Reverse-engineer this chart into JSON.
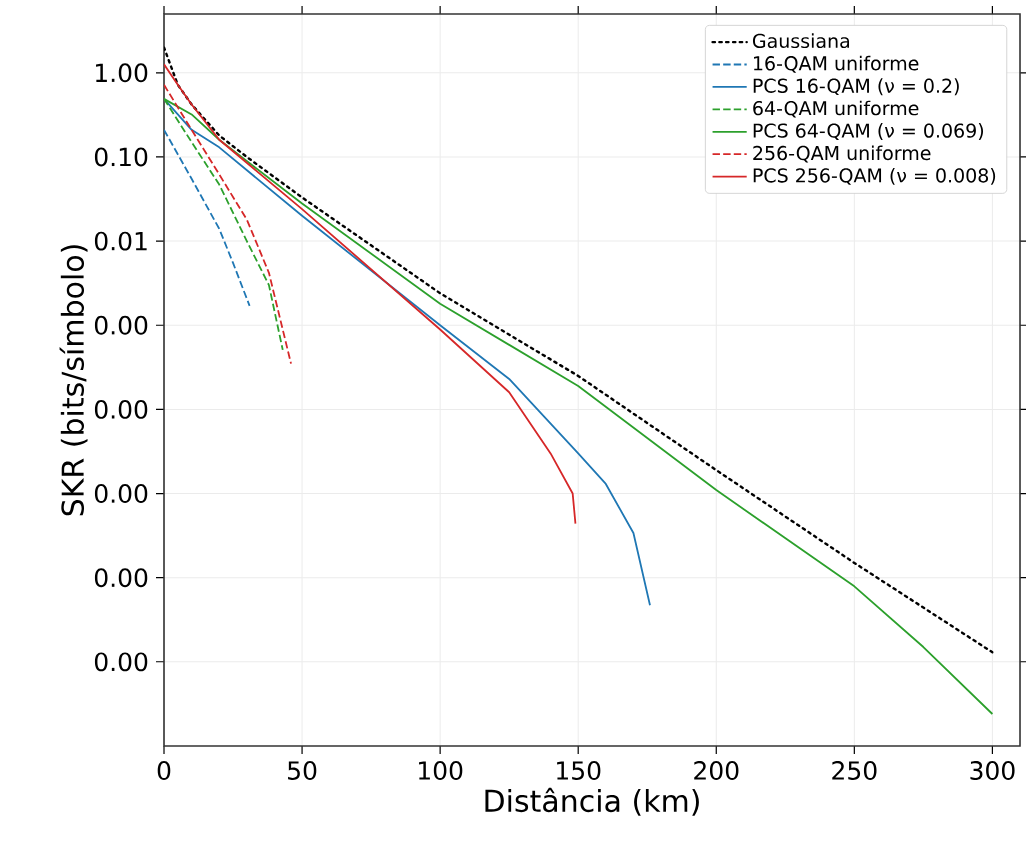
{
  "chart_data": {
    "type": "line",
    "xlabel": "Distância (km)",
    "ylabel": "SKR (bits/símbolo)",
    "log": "y",
    "grid": true,
    "legend": "top right",
    "xlim": [
      0,
      310
    ],
    "ylim": [
      1e-08,
      5
    ],
    "xticks": [
      0,
      50,
      100,
      150,
      200,
      250,
      300
    ],
    "yticks": [
      {
        "value": 1,
        "label": "1.00"
      },
      {
        "value": 0.1,
        "label": "0.10"
      },
      {
        "value": 0.01,
        "label": "0.01"
      },
      {
        "value": 0.001,
        "label": "0.00"
      },
      {
        "value": 0.0001,
        "label": "0.00"
      },
      {
        "value": 1e-05,
        "label": "0.00"
      },
      {
        "value": 1e-06,
        "label": "0.00"
      },
      {
        "value": 1e-07,
        "label": "0.00"
      }
    ],
    "series": [
      {
        "name": "Gaussiana",
        "color": "#000000",
        "line_style": "dotted",
        "x": [
          0,
          5,
          10,
          20,
          30,
          50,
          100,
          150,
          200,
          250,
          300
        ],
        "values": [
          2.0,
          0.72,
          0.42,
          0.18,
          0.1,
          0.033,
          0.0024,
          0.00025,
          1.9e-05,
          1.5e-06,
          1.3e-07
        ]
      },
      {
        "name": "16-QAM uniforme",
        "color": "#1f77b4",
        "line_style": "dashed",
        "x": [
          0,
          10,
          20,
          25,
          31
        ],
        "values": [
          0.21,
          0.055,
          0.014,
          0.0055,
          0.0017
        ]
      },
      {
        "name": "PCS 16-QAM (ν = 0.2)",
        "color": "#1f77b4",
        "line_style": "solid",
        "x": [
          0,
          5,
          10,
          20,
          50,
          100,
          125,
          150,
          160,
          170,
          176
        ],
        "values": [
          0.49,
          0.32,
          0.21,
          0.13,
          0.02,
          0.001,
          0.00023,
          3e-05,
          1.3e-05,
          3.4e-06,
          4.7e-07
        ]
      },
      {
        "name": "64-QAM uniforme",
        "color": "#2ca02c",
        "line_style": "dashed",
        "x": [
          0,
          10,
          20,
          30,
          38,
          43
        ],
        "values": [
          0.49,
          0.15,
          0.047,
          0.01,
          0.003,
          0.00051
        ]
      },
      {
        "name": "PCS 64-QAM (ν = 0.069)",
        "color": "#2ca02c",
        "line_style": "solid",
        "x": [
          0,
          10,
          20,
          50,
          100,
          150,
          200,
          250,
          275,
          300
        ],
        "values": [
          0.49,
          0.32,
          0.16,
          0.028,
          0.0018,
          0.00019,
          1.1e-05,
          7.9e-07,
          1.5e-07,
          2.4e-08
        ]
      },
      {
        "name": "256-QAM uniforme",
        "color": "#d62728",
        "line_style": "dashed",
        "x": [
          0,
          10,
          20,
          30,
          38,
          46
        ],
        "values": [
          0.72,
          0.21,
          0.062,
          0.018,
          0.0042,
          0.00035
        ]
      },
      {
        "name": "PCS 256-QAM (ν = 0.008)",
        "color": "#d62728",
        "line_style": "solid",
        "x": [
          0,
          5,
          10,
          20,
          50,
          100,
          125,
          140,
          148,
          149
        ],
        "values": [
          1.26,
          0.72,
          0.42,
          0.16,
          0.024,
          0.00089,
          0.00016,
          3e-05,
          1e-05,
          4.4e-06
        ]
      }
    ]
  }
}
